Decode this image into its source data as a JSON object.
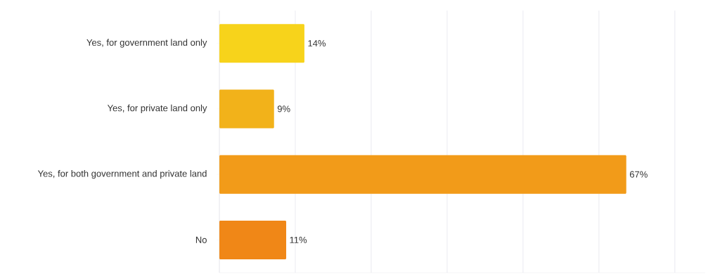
{
  "chart_data": {
    "type": "bar",
    "orientation": "horizontal",
    "categories": [
      "Yes, for government land only",
      "Yes, for private land only",
      "Yes, for both government and private land",
      "No"
    ],
    "values": [
      14,
      9,
      67,
      11
    ],
    "value_labels": [
      "14%",
      "9%",
      "67%",
      "11%"
    ],
    "colors": [
      "#f7d31b",
      "#f2b21a",
      "#f29b19",
      "#f08717"
    ],
    "xlim": [
      0,
      80
    ],
    "xticks": [
      {
        "value": 0,
        "label": null
      },
      {
        "value": 12.5,
        "label": null
      },
      {
        "value": 25,
        "label": null
      },
      {
        "value": 37.5,
        "label": null
      },
      {
        "value": 50,
        "label": null
      },
      {
        "value": 62.5,
        "label": null
      },
      {
        "value": 75,
        "label": null
      }
    ],
    "grid": "x",
    "tick_labels": "y"
  }
}
